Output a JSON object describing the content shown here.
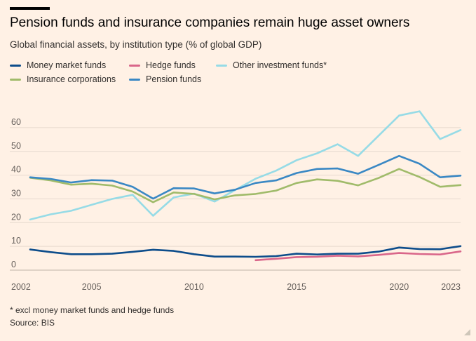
{
  "header": {
    "title": "Pension funds and insurance companies remain huge asset owners",
    "subtitle": "Global financial assets, by institution type (% of global GDP)"
  },
  "footer": {
    "footnote": "* excl money market funds and hedge funds",
    "source": "Source: BIS"
  },
  "colors": {
    "background": "#fff1e5",
    "gridline": "#e6d9ce",
    "money_market": "#0d4d8b",
    "hedge": "#d9668a",
    "other_investment": "#96dbe6",
    "insurance": "#a0bb6a",
    "pension": "#3a88c4"
  },
  "chart_data": {
    "type": "line",
    "title": "Pension funds and insurance companies remain huge asset owners",
    "subtitle": "Global financial assets, by institution type (% of global GDP)",
    "xlabel": "",
    "ylabel": "",
    "xlim": [
      2002,
      2023
    ],
    "ylim": [
      0,
      65
    ],
    "x_ticks": [
      "2002",
      "2005",
      "2010",
      "2015",
      "2020",
      "2023"
    ],
    "y_ticks": [
      "0",
      "10",
      "20",
      "30",
      "40",
      "50",
      "60"
    ],
    "grid": true,
    "legend_position": "top-left",
    "series": [
      {
        "name": "Money market funds",
        "color": "#0d4d8b",
        "x": [
          2002,
          2003,
          2004,
          2005,
          2006,
          2007,
          2008,
          2009,
          2010,
          2011,
          2012,
          2013,
          2014,
          2015,
          2016,
          2017,
          2018,
          2019,
          2020,
          2021,
          2022,
          2023
        ],
        "values": [
          8.7,
          7.6,
          6.7,
          6.7,
          6.9,
          7.7,
          8.6,
          8.1,
          6.7,
          5.7,
          5.7,
          5.6,
          5.9,
          6.9,
          6.6,
          6.9,
          6.9,
          7.8,
          9.5,
          8.9,
          8.8,
          10.1
        ]
      },
      {
        "name": "Hedge funds",
        "color": "#d9668a",
        "x": [
          2013,
          2014,
          2015,
          2016,
          2017,
          2018,
          2019,
          2020,
          2021,
          2022,
          2023
        ],
        "values": [
          4.2,
          4.8,
          5.5,
          5.6,
          6.1,
          5.8,
          6.4,
          7.2,
          6.8,
          6.6,
          7.9
        ]
      },
      {
        "name": "Other investment funds*",
        "color": "#96dbe6",
        "x": [
          2002,
          2003,
          2004,
          2005,
          2006,
          2007,
          2008,
          2009,
          2010,
          2011,
          2012,
          2013,
          2014,
          2015,
          2016,
          2017,
          2018,
          2019,
          2020,
          2021,
          2022,
          2023
        ],
        "values": [
          21.3,
          23.5,
          25.0,
          27.5,
          30.0,
          31.7,
          22.9,
          30.6,
          32.2,
          28.9,
          33.7,
          38.5,
          41.9,
          46.3,
          49.2,
          53.0,
          48.1,
          56.6,
          65.1,
          66.9,
          55.2,
          59.0
        ]
      },
      {
        "name": "Insurance corporations",
        "color": "#a0bb6a",
        "x": [
          2002,
          2003,
          2004,
          2005,
          2006,
          2007,
          2008,
          2009,
          2010,
          2011,
          2012,
          2013,
          2014,
          2015,
          2016,
          2017,
          2018,
          2019,
          2020,
          2021,
          2022,
          2023
        ],
        "values": [
          38.9,
          37.8,
          36.0,
          36.4,
          35.6,
          33.1,
          28.6,
          32.7,
          32.1,
          29.8,
          31.5,
          32.1,
          33.5,
          36.7,
          38.2,
          37.6,
          35.7,
          38.8,
          42.6,
          39.2,
          35.1,
          35.8
        ]
      },
      {
        "name": "Pension funds",
        "color": "#3a88c4",
        "x": [
          2002,
          2003,
          2004,
          2005,
          2006,
          2007,
          2008,
          2009,
          2010,
          2011,
          2012,
          2013,
          2014,
          2015,
          2016,
          2017,
          2018,
          2019,
          2020,
          2021,
          2022,
          2023
        ],
        "values": [
          39.1,
          38.4,
          36.9,
          37.9,
          37.7,
          35.1,
          30.1,
          34.5,
          34.4,
          32.3,
          33.9,
          36.7,
          37.8,
          40.9,
          42.6,
          42.8,
          40.6,
          44.3,
          48.1,
          44.8,
          39.1,
          39.8
        ]
      }
    ]
  }
}
